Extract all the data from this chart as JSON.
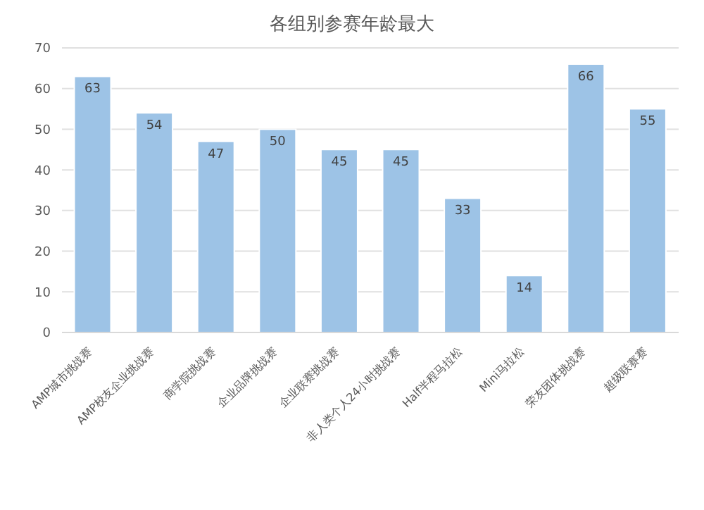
{
  "chart_data": {
    "type": "bar",
    "title": "各组别参赛年龄最大",
    "categories": [
      "AMP城市挑战赛",
      "AMP校友企业挑战赛",
      "商学院挑战赛",
      "企业品牌挑战赛",
      "企业联赛挑战赛",
      "非人类个人24小时挑战赛",
      "Half半程马拉松",
      "Mini马拉松",
      "荣友团体挑战赛",
      "超级联赛赛"
    ],
    "values": [
      63,
      54,
      47,
      50,
      45,
      45,
      33,
      14,
      66,
      55
    ],
    "color": "#9dc3e6",
    "ylim": [
      0,
      70
    ],
    "yticks": [
      0,
      10,
      20,
      30,
      40,
      50,
      60,
      70
    ],
    "grid": "y",
    "data_labels": true
  }
}
